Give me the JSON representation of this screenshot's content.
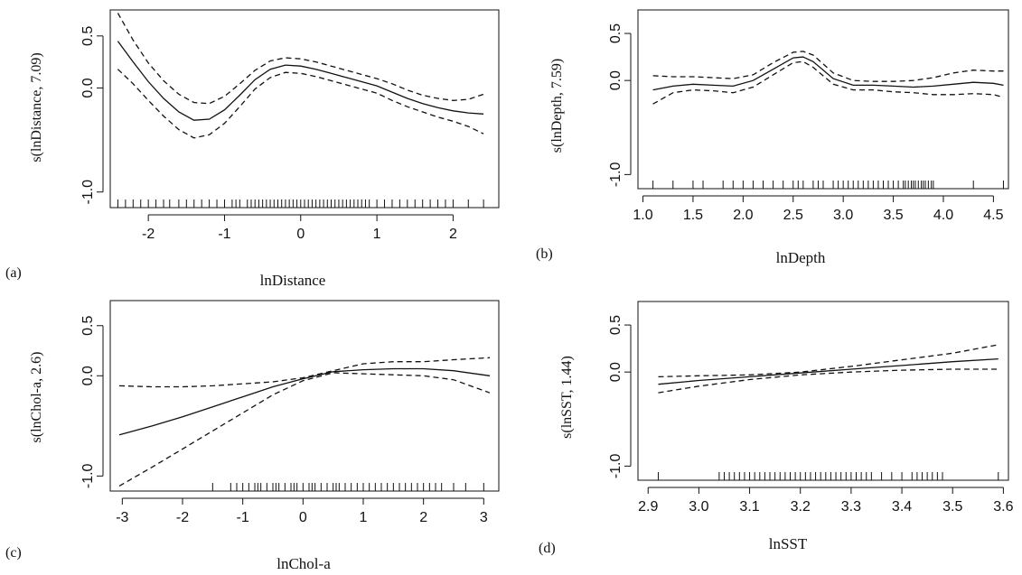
{
  "chart_data": [
    {
      "type": "line",
      "panel": "(a)",
      "xlabel": "lnDistance",
      "ylabel": "s(lnDistance, 7.09)",
      "xlim": [
        -2.5,
        2.6
      ],
      "ylim": [
        -1.15,
        0.75
      ],
      "xticks": [
        -2,
        -1,
        0,
        1,
        2
      ],
      "yticks": [
        0.5,
        0.0,
        -1.0
      ],
      "xtick_labels": [
        "-2",
        "-1",
        "0",
        "1",
        "2"
      ],
      "ytick_labels": [
        "0.5",
        "0.0",
        "-1.0"
      ],
      "x": [
        -2.4,
        -2.2,
        -2.0,
        -1.8,
        -1.6,
        -1.4,
        -1.2,
        -1.0,
        -0.8,
        -0.6,
        -0.4,
        -0.2,
        0.0,
        0.2,
        0.4,
        0.6,
        0.8,
        1.0,
        1.2,
        1.4,
        1.6,
        1.8,
        2.0,
        2.2,
        2.4
      ],
      "series": [
        {
          "values": [
            0.45,
            0.25,
            0.06,
            -0.1,
            -0.23,
            -0.31,
            -0.3,
            -0.21,
            -0.07,
            0.08,
            0.18,
            0.22,
            0.21,
            0.18,
            0.14,
            0.1,
            0.06,
            0.02,
            -0.04,
            -0.1,
            -0.15,
            -0.19,
            -0.22,
            -0.24,
            -0.25
          ]
        },
        {
          "values": [
            0.72,
            0.46,
            0.24,
            0.07,
            -0.06,
            -0.14,
            -0.15,
            -0.08,
            0.04,
            0.17,
            0.26,
            0.29,
            0.28,
            0.25,
            0.21,
            0.17,
            0.13,
            0.09,
            0.04,
            -0.02,
            -0.07,
            -0.1,
            -0.12,
            -0.11,
            -0.06
          ]
        },
        {
          "values": [
            0.18,
            0.04,
            -0.12,
            -0.27,
            -0.4,
            -0.48,
            -0.45,
            -0.34,
            -0.18,
            -0.01,
            0.1,
            0.15,
            0.14,
            0.11,
            0.07,
            0.03,
            -0.01,
            -0.05,
            -0.12,
            -0.18,
            -0.23,
            -0.28,
            -0.32,
            -0.37,
            -0.44
          ]
        }
      ],
      "rug": [
        -2.4,
        -2.3,
        -2.2,
        -2.1,
        -2.0,
        -1.9,
        -1.8,
        -1.72,
        -1.6,
        -1.5,
        -1.4,
        -1.3,
        -1.2,
        -1.1,
        -1.0,
        -0.9,
        -0.85,
        -0.8,
        -0.7,
        -0.65,
        -0.6,
        -0.55,
        -0.5,
        -0.45,
        -0.4,
        -0.35,
        -0.3,
        -0.25,
        -0.2,
        -0.15,
        -0.1,
        -0.05,
        0.0,
        0.05,
        0.1,
        0.15,
        0.2,
        0.25,
        0.3,
        0.35,
        0.4,
        0.45,
        0.5,
        0.55,
        0.6,
        0.65,
        0.7,
        0.75,
        0.8,
        0.85,
        0.9,
        1.0,
        1.1,
        1.2,
        1.3,
        1.4,
        1.5,
        1.6,
        1.7,
        1.8,
        1.9,
        2.0,
        2.2,
        2.4
      ]
    },
    {
      "type": "line",
      "panel": "(b)",
      "xlabel": "lnDepth",
      "ylabel": "s(lnDepth, 7.59)",
      "xlim": [
        0.95,
        4.65
      ],
      "ylim": [
        -1.15,
        0.75
      ],
      "xticks": [
        1.0,
        1.5,
        2.0,
        2.5,
        3.0,
        3.5,
        4.0,
        4.5
      ],
      "yticks": [
        0.5,
        0.0,
        -1.0
      ],
      "xtick_labels": [
        "1.0",
        "1.5",
        "2.0",
        "2.5",
        "3.0",
        "3.5",
        "4.0",
        "4.5"
      ],
      "ytick_labels": [
        "0.5",
        "0.0",
        "-1.0"
      ],
      "x": [
        1.1,
        1.3,
        1.5,
        1.7,
        1.9,
        2.1,
        2.3,
        2.5,
        2.6,
        2.7,
        2.9,
        3.1,
        3.3,
        3.5,
        3.7,
        3.9,
        4.1,
        4.3,
        4.5,
        4.6
      ],
      "series": [
        {
          "values": [
            -0.1,
            -0.06,
            -0.04,
            -0.05,
            -0.06,
            0.0,
            0.12,
            0.24,
            0.25,
            0.2,
            0.02,
            -0.05,
            -0.05,
            -0.06,
            -0.07,
            -0.06,
            -0.04,
            -0.02,
            -0.03,
            -0.05
          ]
        },
        {
          "values": [
            0.05,
            0.04,
            0.04,
            0.03,
            0.02,
            0.06,
            0.19,
            0.3,
            0.31,
            0.27,
            0.08,
            0.0,
            -0.01,
            -0.01,
            0.0,
            0.03,
            0.08,
            0.11,
            0.1,
            0.1
          ]
        },
        {
          "values": [
            -0.25,
            -0.13,
            -0.1,
            -0.11,
            -0.13,
            -0.07,
            0.06,
            0.19,
            0.2,
            0.14,
            -0.04,
            -0.1,
            -0.1,
            -0.12,
            -0.13,
            -0.15,
            -0.15,
            -0.14,
            -0.15,
            -0.18
          ]
        }
      ],
      "rug": [
        1.1,
        1.3,
        1.5,
        1.6,
        1.8,
        1.9,
        2.0,
        2.1,
        2.2,
        2.3,
        2.4,
        2.5,
        2.55,
        2.6,
        2.7,
        2.75,
        2.8,
        2.9,
        2.95,
        3.0,
        3.05,
        3.1,
        3.15,
        3.2,
        3.25,
        3.3,
        3.35,
        3.4,
        3.45,
        3.5,
        3.55,
        3.6,
        3.62,
        3.65,
        3.68,
        3.7,
        3.72,
        3.75,
        3.78,
        3.8,
        3.82,
        3.85,
        3.88,
        3.9,
        4.3,
        4.6
      ]
    },
    {
      "type": "line",
      "panel": "(c)",
      "xlabel": "lnChol-a",
      "ylabel": "s(lnChol-a, 2.6)",
      "xlim": [
        -3.2,
        3.25
      ],
      "ylim": [
        -1.15,
        0.75
      ],
      "xticks": [
        -3,
        -2,
        -1,
        0,
        1,
        2,
        3
      ],
      "yticks": [
        0.5,
        0.0,
        -1.0
      ],
      "xtick_labels": [
        "-3",
        "-2",
        "-1",
        "0",
        "1",
        "2",
        "3"
      ],
      "ytick_labels": [
        "0.5",
        "0.0",
        "-1.0"
      ],
      "x": [
        -3.05,
        -2.5,
        -2.0,
        -1.5,
        -1.0,
        -0.5,
        0.0,
        0.5,
        1.0,
        1.5,
        2.0,
        2.5,
        3.1
      ],
      "series": [
        {
          "values": [
            -0.59,
            -0.5,
            -0.41,
            -0.31,
            -0.21,
            -0.11,
            -0.03,
            0.04,
            0.06,
            0.07,
            0.07,
            0.05,
            0.0
          ]
        },
        {
          "values": [
            -0.1,
            -0.11,
            -0.11,
            -0.1,
            -0.08,
            -0.06,
            -0.02,
            0.05,
            0.12,
            0.14,
            0.14,
            0.16,
            0.18
          ]
        },
        {
          "values": [
            -1.1,
            -0.91,
            -0.73,
            -0.55,
            -0.37,
            -0.19,
            -0.05,
            0.03,
            0.02,
            0.01,
            0.0,
            -0.04,
            -0.17
          ]
        }
      ],
      "rug": [
        -1.5,
        -1.2,
        -1.1,
        -1.0,
        -0.9,
        -0.8,
        -0.75,
        -0.7,
        -0.6,
        -0.5,
        -0.45,
        -0.4,
        -0.3,
        -0.2,
        -0.15,
        -0.1,
        0.0,
        0.1,
        0.15,
        0.2,
        0.3,
        0.4,
        0.5,
        0.55,
        0.6,
        0.7,
        0.8,
        0.9,
        1.0,
        1.1,
        1.2,
        1.3,
        1.4,
        1.5,
        1.6,
        1.7,
        1.8,
        1.9,
        2.0,
        2.1,
        2.2,
        2.3,
        2.5,
        2.7,
        3.0
      ]
    },
    {
      "type": "line",
      "panel": "(d)",
      "xlabel": "lnSST",
      "ylabel": "s(lnSST, 1.44)",
      "xlim": [
        2.88,
        3.61
      ],
      "ylim": [
        -1.15,
        0.75
      ],
      "xticks": [
        2.9,
        3.0,
        3.1,
        3.2,
        3.3,
        3.4,
        3.5,
        3.6
      ],
      "yticks": [
        0.5,
        0.0,
        -1.0
      ],
      "xtick_labels": [
        "2.9",
        "3.0",
        "3.1",
        "3.2",
        "3.3",
        "3.4",
        "3.5",
        "3.6"
      ],
      "ytick_labels": [
        "0.5",
        "0.0",
        "-1.0"
      ],
      "x": [
        2.92,
        3.0,
        3.1,
        3.2,
        3.3,
        3.4,
        3.5,
        3.59
      ],
      "series": [
        {
          "values": [
            -0.13,
            -0.09,
            -0.05,
            -0.01,
            0.03,
            0.07,
            0.11,
            0.14
          ]
        },
        {
          "values": [
            -0.05,
            -0.04,
            -0.03,
            0.0,
            0.06,
            0.13,
            0.2,
            0.29
          ]
        },
        {
          "values": [
            -0.22,
            -0.15,
            -0.08,
            -0.03,
            0.0,
            0.02,
            0.03,
            0.03
          ]
        }
      ],
      "rug": [
        2.92,
        3.04,
        3.05,
        3.06,
        3.07,
        3.08,
        3.09,
        3.1,
        3.11,
        3.12,
        3.13,
        3.14,
        3.15,
        3.16,
        3.17,
        3.18,
        3.19,
        3.2,
        3.21,
        3.22,
        3.23,
        3.24,
        3.25,
        3.26,
        3.27,
        3.28,
        3.29,
        3.3,
        3.31,
        3.32,
        3.33,
        3.34,
        3.36,
        3.38,
        3.4,
        3.42,
        3.43,
        3.44,
        3.45,
        3.46,
        3.47,
        3.48,
        3.59
      ]
    }
  ]
}
